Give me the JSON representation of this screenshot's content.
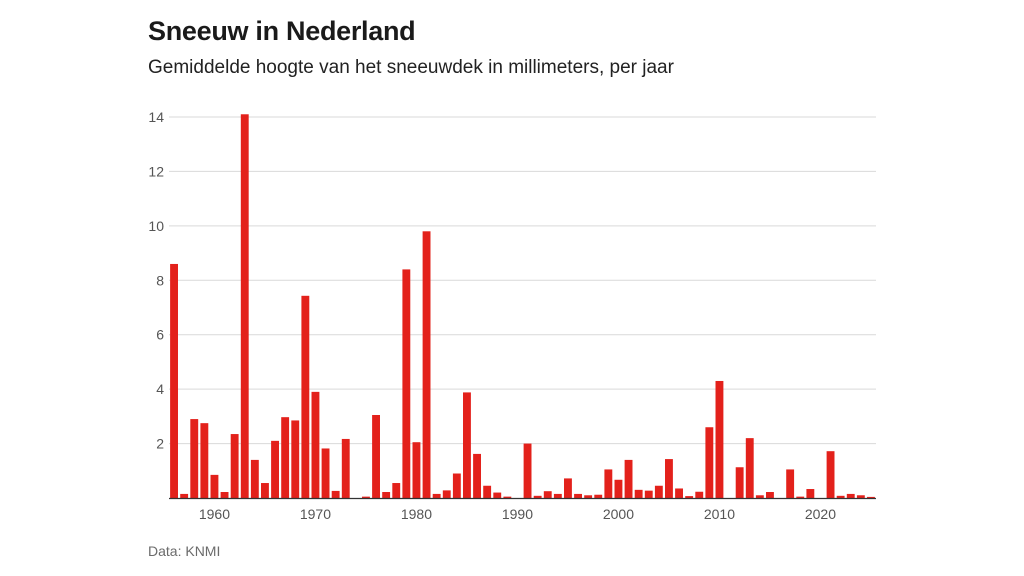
{
  "header": {
    "title": "Sneeuw in Nederland",
    "subtitle": "Gemiddelde hoogte van het sneeuwdek in millimeters, per jaar"
  },
  "footer": {
    "source": "Data: KNMI"
  },
  "colors": {
    "bar": "#e3211b",
    "grid": "#d9d9d9",
    "axis": "#333333"
  },
  "chart_data": {
    "type": "bar",
    "title": "Sneeuw in Nederland",
    "subtitle": "Gemiddelde hoogte van het sneeuwdek in millimeters, per jaar",
    "xlabel": "",
    "ylabel": "",
    "ylim": [
      0,
      14
    ],
    "xlim": [
      1956,
      2025
    ],
    "grid": true,
    "yticks": [
      2,
      4,
      6,
      8,
      10,
      12,
      14
    ],
    "yticks_labels": [
      "2",
      "4",
      "6",
      "8",
      "10",
      "12",
      "14"
    ],
    "xticks": [
      1960,
      1970,
      1980,
      1990,
      2000,
      2010,
      2020
    ],
    "xticks_labels": [
      "1960",
      "1970",
      "1980",
      "1990",
      "2000",
      "2010",
      "2020"
    ],
    "categories": [
      1956,
      1957,
      1958,
      1959,
      1960,
      1961,
      1962,
      1963,
      1964,
      1965,
      1966,
      1967,
      1968,
      1969,
      1970,
      1971,
      1972,
      1973,
      1974,
      1975,
      1976,
      1977,
      1978,
      1979,
      1980,
      1981,
      1982,
      1983,
      1984,
      1985,
      1986,
      1987,
      1988,
      1989,
      1990,
      1991,
      1992,
      1993,
      1994,
      1995,
      1996,
      1997,
      1998,
      1999,
      2000,
      2001,
      2002,
      2003,
      2004,
      2005,
      2006,
      2007,
      2008,
      2009,
      2010,
      2011,
      2012,
      2013,
      2014,
      2015,
      2016,
      2017,
      2018,
      2019,
      2020,
      2021,
      2022,
      2023,
      2024,
      2025
    ],
    "values": [
      8.6,
      0.15,
      2.9,
      2.75,
      0.85,
      0.22,
      2.35,
      14.1,
      1.4,
      0.55,
      2.1,
      2.97,
      2.85,
      7.43,
      3.9,
      1.82,
      0.26,
      2.17,
      0,
      0.05,
      3.05,
      0.22,
      0.55,
      8.4,
      2.05,
      9.8,
      0.15,
      0.28,
      0.9,
      3.88,
      1.62,
      0.45,
      0.2,
      0.05,
      0,
      2.0,
      0.08,
      0.25,
      0.15,
      0.72,
      0.15,
      0.1,
      0.12,
      1.05,
      0.67,
      1.4,
      0.3,
      0.27,
      0.45,
      1.43,
      0.35,
      0.07,
      0.23,
      2.6,
      4.3,
      0,
      1.13,
      2.2,
      0.1,
      0.22,
      0,
      1.05,
      0.05,
      0.33,
      0,
      1.72,
      0.08,
      0.15,
      0.1,
      0.04
    ],
    "source": "Data: KNMI"
  }
}
